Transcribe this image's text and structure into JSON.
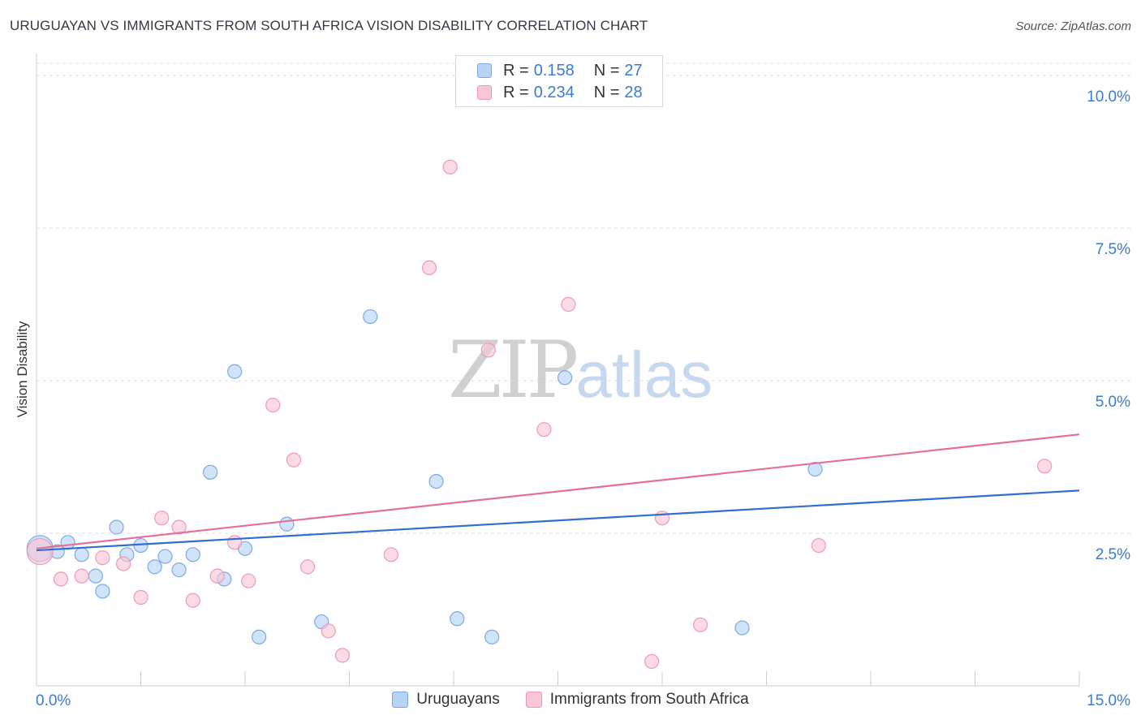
{
  "title": "URUGUAYAN VS IMMIGRANTS FROM SOUTH AFRICA VISION DISABILITY CORRELATION CHART",
  "source": "Source: ZipAtlas.com",
  "watermark": {
    "zip": "ZIP",
    "atlas": "atlas"
  },
  "legend": {
    "rows": [
      {
        "r_label": "R =",
        "r_value": "0.158",
        "n_label": "N =",
        "n_value": "27"
      },
      {
        "r_label": "R =",
        "r_value": "0.234",
        "n_label": "N =",
        "n_value": "28"
      }
    ]
  },
  "bottom_legend": {
    "series1": "Uruguayans",
    "series2": "Immigrants from South Africa"
  },
  "colors": {
    "blue_fill": "#b8d4f5",
    "blue_stroke": "#7aaae6",
    "blue_line": "#2f6fd0",
    "pink_fill": "#f8c6d6",
    "pink_stroke": "#ee9ab5",
    "pink_line": "#e46f9a",
    "tick_label": "#3a7bd5",
    "grid": "#dddddd"
  },
  "chart_data": {
    "type": "scatter",
    "ylabel": "Vision Disability",
    "xlim": [
      0,
      15
    ],
    "ylim": [
      0,
      10.2
    ],
    "x_tick_labels": [
      {
        "value": 0,
        "label": "0.0%"
      },
      {
        "value": 15,
        "label": "15.0%"
      }
    ],
    "y_tick_labels": [
      {
        "value": 2.5,
        "label": "2.5%"
      },
      {
        "value": 5.0,
        "label": "5.0%"
      },
      {
        "value": 7.5,
        "label": "7.5%"
      },
      {
        "value": 10.0,
        "label": "10.0%"
      }
    ],
    "grid": "horizontal dashed",
    "legend_position": "top-center",
    "series": [
      {
        "name": "Uruguayans",
        "color": "blue",
        "points": [
          [
            0.05,
            2.25
          ],
          [
            0.3,
            2.2
          ],
          [
            0.45,
            2.35
          ],
          [
            0.65,
            2.15
          ],
          [
            0.85,
            1.8
          ],
          [
            0.95,
            1.55
          ],
          [
            1.15,
            2.6
          ],
          [
            1.3,
            2.15
          ],
          [
            1.5,
            2.3
          ],
          [
            1.7,
            1.95
          ],
          [
            1.85,
            2.12
          ],
          [
            2.05,
            1.9
          ],
          [
            2.25,
            2.15
          ],
          [
            2.5,
            3.5
          ],
          [
            2.7,
            1.75
          ],
          [
            2.85,
            5.15
          ],
          [
            3.0,
            2.25
          ],
          [
            3.2,
            0.8
          ],
          [
            3.6,
            2.65
          ],
          [
            4.1,
            1.05
          ],
          [
            4.8,
            6.05
          ],
          [
            5.75,
            3.35
          ],
          [
            6.05,
            1.1
          ],
          [
            6.55,
            0.8
          ],
          [
            7.6,
            5.05
          ],
          [
            10.15,
            0.95
          ],
          [
            11.2,
            3.55
          ]
        ],
        "trend": {
          "x": [
            0,
            15
          ],
          "y": [
            2.22,
            3.2
          ]
        }
      },
      {
        "name": "Immigrants from South Africa",
        "color": "pink",
        "points": [
          [
            0.05,
            2.2
          ],
          [
            0.35,
            1.75
          ],
          [
            0.65,
            1.8
          ],
          [
            0.95,
            2.1
          ],
          [
            1.25,
            2.0
          ],
          [
            1.5,
            1.45
          ],
          [
            1.8,
            2.75
          ],
          [
            2.05,
            2.6
          ],
          [
            2.25,
            1.4
          ],
          [
            2.6,
            1.8
          ],
          [
            2.85,
            2.35
          ],
          [
            3.05,
            1.72
          ],
          [
            3.4,
            4.6
          ],
          [
            3.7,
            3.7
          ],
          [
            3.9,
            1.95
          ],
          [
            4.2,
            0.9
          ],
          [
            4.4,
            0.5
          ],
          [
            5.1,
            2.15
          ],
          [
            5.65,
            6.85
          ],
          [
            5.95,
            8.5
          ],
          [
            6.5,
            5.5
          ],
          [
            7.3,
            4.2
          ],
          [
            7.65,
            6.25
          ],
          [
            8.85,
            0.4
          ],
          [
            9.0,
            2.75
          ],
          [
            9.55,
            1.0
          ],
          [
            11.25,
            2.3
          ],
          [
            14.5,
            3.6
          ]
        ],
        "trend": {
          "x": [
            0,
            15
          ],
          "y": [
            2.25,
            4.12
          ]
        }
      }
    ]
  }
}
